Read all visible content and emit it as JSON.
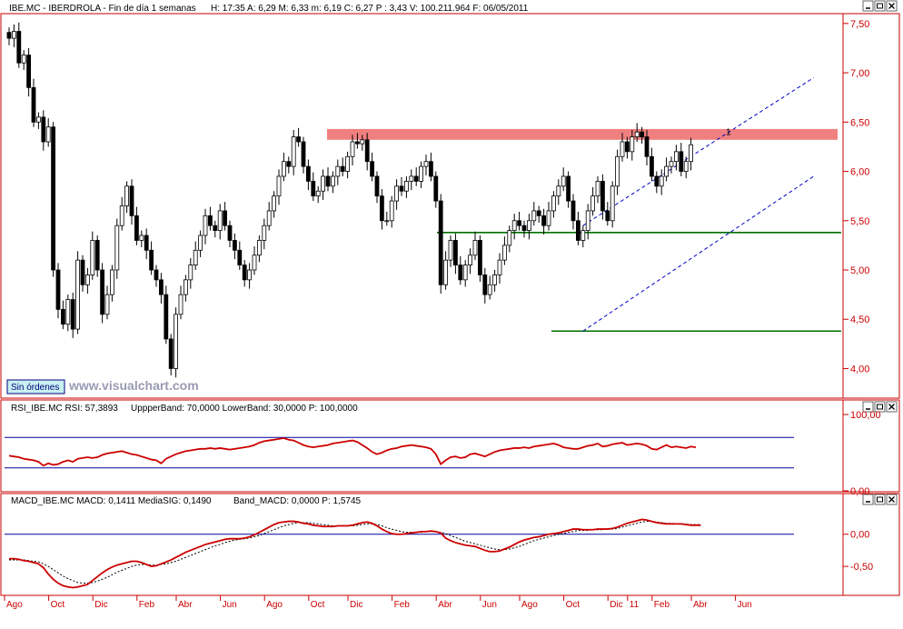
{
  "colors": {
    "frame": "#c80000",
    "candle_up": "#ffffff",
    "candle_down": "#000000",
    "resistance_band": "#f08080",
    "support": "#007000",
    "channel": "#0000c8",
    "rsi_line": "#cc0000",
    "rsi_band": "#0000a0",
    "macd_line": "#cc0000",
    "signal_line": "#000000",
    "axis_text": "#cc0000"
  },
  "header": {
    "price_title": "IBE.MC - IBERDROLA - Fin de día 1 semanas",
    "price_stats": "H: 17:35  A: 6,29  M: 6,33  m: 6,19  C: 6,27  P : 3,43  V: 100.211.964  F: 06/05/2011",
    "rsi_title": "RSI_IBE.MC  RSI: 57,3893",
    "rsi_stats": "UppperBand: 70,0000  LowerBand: 30,0000  P: 100,0000",
    "macd_title": "MACD_IBE.MC  MACD: 0,1411  MediaSIG: 0,1490",
    "macd_stats": "Band_MACD: 0,0000  P: 1,5745"
  },
  "button": {
    "label": "Sin órdenes"
  },
  "watermark": "www.visualchart.com",
  "window_controls": [
    "minimize-icon",
    "restore-icon",
    "close-icon"
  ],
  "annotation": "1",
  "chart_data": [
    {
      "type": "candlestick",
      "ylim": [
        3.7,
        7.6
      ],
      "yticks": [
        "7,50",
        "7,00",
        "6,50",
        "6,00",
        "5,50",
        "5,00",
        "4,50",
        "4,00"
      ],
      "ytick_values": [
        7.5,
        7.0,
        6.5,
        6.0,
        5.5,
        5.0,
        4.5,
        4.0
      ],
      "x_labels": [
        "Ago",
        "Oct",
        "Dic",
        "Feb",
        "Abr",
        "Jun",
        "Ago",
        "Oct",
        "Dic",
        "Feb",
        "Abr",
        "Jun",
        "Ago",
        "Oct",
        "Dic",
        "11",
        "Feb",
        "Abr",
        "Jun"
      ],
      "x_label_weeks": [
        0,
        9,
        18,
        27,
        35,
        44,
        53,
        62,
        70,
        79,
        88,
        97,
        105,
        114,
        123,
        127,
        132,
        140,
        149
      ],
      "closes": [
        7.35,
        7.42,
        7.1,
        7.18,
        6.85,
        6.5,
        6.55,
        6.3,
        6.45,
        5.0,
        4.6,
        4.45,
        4.7,
        4.4,
        5.1,
        4.85,
        4.95,
        5.3,
        5.0,
        4.55,
        4.75,
        5.0,
        5.45,
        5.65,
        5.85,
        5.55,
        5.3,
        5.35,
        5.2,
        5.0,
        4.9,
        4.75,
        4.3,
        4.0,
        4.55,
        4.75,
        4.9,
        5.05,
        5.2,
        5.35,
        5.55,
        5.45,
        5.4,
        5.6,
        5.45,
        5.3,
        5.2,
        5.05,
        4.9,
        5.0,
        5.15,
        5.3,
        5.45,
        5.6,
        5.75,
        5.95,
        6.1,
        6.05,
        6.35,
        6.3,
        6.05,
        5.9,
        5.75,
        5.8,
        5.95,
        5.85,
        5.95,
        6.05,
        6.0,
        6.15,
        6.3,
        6.28,
        6.32,
        6.1,
        5.95,
        5.75,
        5.5,
        5.5,
        5.7,
        5.85,
        5.8,
        5.9,
        5.95,
        5.9,
        6.05,
        6.1,
        5.95,
        5.7,
        4.85,
        5.1,
        5.3,
        5.05,
        4.9,
        5.05,
        5.15,
        5.3,
        4.95,
        4.75,
        4.85,
        4.95,
        5.1,
        5.25,
        5.4,
        5.5,
        5.45,
        5.4,
        5.5,
        5.6,
        5.55,
        5.45,
        5.6,
        5.75,
        5.85,
        5.95,
        5.7,
        5.5,
        5.3,
        5.4,
        5.6,
        5.75,
        5.9,
        5.6,
        5.5,
        5.85,
        6.15,
        6.3,
        6.2,
        6.35,
        6.4,
        6.35,
        6.15,
        5.95,
        5.85,
        5.95,
        6.05,
        6.1,
        6.2,
        6.0,
        6.1,
        6.27
      ],
      "resistance_band": [
        6.32,
        6.43
      ],
      "support_lines": [
        5.38,
        4.38
      ],
      "channel_upper": [
        [
          117,
          5.45
        ],
        [
          164,
          6.95
        ]
      ],
      "channel_lower": [
        [
          117,
          4.38
        ],
        [
          164,
          5.95
        ]
      ]
    },
    {
      "type": "line",
      "name": "RSI",
      "ylim": [
        0,
        100
      ],
      "yticks": [
        "100,00",
        "0,00"
      ],
      "ytick_values": [
        100,
        0
      ],
      "bands": [
        70,
        30
      ],
      "values": [
        46,
        45,
        44,
        42,
        41,
        40,
        38,
        33,
        36,
        34,
        35,
        38,
        40,
        38,
        42,
        43,
        44,
        43,
        44,
        47,
        49,
        50,
        51,
        52,
        50,
        48,
        47,
        45,
        43,
        41,
        40,
        36,
        42,
        45,
        48,
        50,
        52,
        53,
        54,
        55,
        55,
        56,
        55,
        56,
        55,
        54,
        55,
        56,
        57,
        58,
        60,
        63,
        65,
        66,
        67,
        68,
        69,
        67,
        66,
        63,
        60,
        58,
        57,
        58,
        59,
        60,
        62,
        63,
        64,
        65,
        66,
        64,
        60,
        56,
        51,
        48,
        50,
        53,
        55,
        56,
        58,
        59,
        60,
        59,
        58,
        57,
        55,
        48,
        35,
        40,
        44,
        45,
        43,
        44,
        48,
        49,
        47,
        45,
        48,
        51,
        53,
        54,
        55,
        56,
        56,
        57,
        56,
        58,
        59,
        60,
        61,
        62,
        60,
        57,
        56,
        55,
        55,
        57,
        59,
        60,
        62,
        58,
        59,
        61,
        62,
        63,
        60,
        61,
        62,
        61,
        59,
        55,
        54,
        57,
        60,
        57,
        58,
        57,
        56,
        58,
        57
      ]
    },
    {
      "type": "line",
      "name": "MACD",
      "ylim": [
        -0.95,
        0.42
      ],
      "yticks": [
        "0,00",
        "-0,50"
      ],
      "ytick_values": [
        0.0,
        -0.5
      ],
      "zero_line": 0,
      "macd": [
        -0.38,
        -0.38,
        -0.39,
        -0.41,
        -0.42,
        -0.44,
        -0.46,
        -0.52,
        -0.62,
        -0.7,
        -0.76,
        -0.8,
        -0.82,
        -0.83,
        -0.82,
        -0.8,
        -0.78,
        -0.72,
        -0.66,
        -0.6,
        -0.55,
        -0.51,
        -0.48,
        -0.46,
        -0.44,
        -0.42,
        -0.42,
        -0.44,
        -0.47,
        -0.5,
        -0.49,
        -0.46,
        -0.43,
        -0.4,
        -0.36,
        -0.32,
        -0.28,
        -0.25,
        -0.22,
        -0.19,
        -0.16,
        -0.14,
        -0.12,
        -0.1,
        -0.08,
        -0.07,
        -0.07,
        -0.07,
        -0.06,
        -0.04,
        -0.01,
        0.03,
        0.07,
        0.11,
        0.15,
        0.18,
        0.19,
        0.2,
        0.2,
        0.19,
        0.17,
        0.16,
        0.14,
        0.13,
        0.12,
        0.12,
        0.12,
        0.13,
        0.13,
        0.13,
        0.14,
        0.16,
        0.18,
        0.19,
        0.17,
        0.13,
        0.08,
        0.04,
        0.01,
        0.0,
        0.0,
        0.01,
        0.02,
        0.03,
        0.04,
        0.04,
        0.05,
        0.04,
        0.02,
        -0.06,
        -0.1,
        -0.13,
        -0.15,
        -0.17,
        -0.18,
        -0.19,
        -0.22,
        -0.25,
        -0.27,
        -0.27,
        -0.26,
        -0.23,
        -0.2,
        -0.16,
        -0.12,
        -0.09,
        -0.07,
        -0.05,
        -0.04,
        -0.02,
        0.0,
        0.01,
        0.02,
        0.04,
        0.06,
        0.08,
        0.08,
        0.07,
        0.07,
        0.07,
        0.08,
        0.08,
        0.08,
        0.09,
        0.11,
        0.14,
        0.17,
        0.19,
        0.21,
        0.23,
        0.22,
        0.2,
        0.18,
        0.17,
        0.16,
        0.16,
        0.16,
        0.16,
        0.15,
        0.14,
        0.14,
        0.14
      ],
      "signal": [
        -0.4,
        -0.4,
        -0.4,
        -0.4,
        -0.41,
        -0.42,
        -0.43,
        -0.46,
        -0.5,
        -0.55,
        -0.6,
        -0.65,
        -0.69,
        -0.72,
        -0.75,
        -0.76,
        -0.76,
        -0.75,
        -0.73,
        -0.7,
        -0.67,
        -0.63,
        -0.59,
        -0.56,
        -0.53,
        -0.5,
        -0.48,
        -0.47,
        -0.47,
        -0.48,
        -0.48,
        -0.47,
        -0.46,
        -0.44,
        -0.42,
        -0.39,
        -0.36,
        -0.33,
        -0.3,
        -0.27,
        -0.24,
        -0.21,
        -0.18,
        -0.16,
        -0.13,
        -0.11,
        -0.09,
        -0.08,
        -0.07,
        -0.06,
        -0.04,
        -0.02,
        0.01,
        0.04,
        0.07,
        0.1,
        0.13,
        0.15,
        0.17,
        0.18,
        0.18,
        0.18,
        0.17,
        0.16,
        0.15,
        0.14,
        0.13,
        0.13,
        0.13,
        0.13,
        0.13,
        0.14,
        0.15,
        0.16,
        0.16,
        0.15,
        0.13,
        0.1,
        0.08,
        0.06,
        0.04,
        0.03,
        0.03,
        0.03,
        0.03,
        0.04,
        0.04,
        0.04,
        0.03,
        0.01,
        -0.02,
        -0.05,
        -0.08,
        -0.11,
        -0.13,
        -0.15,
        -0.17,
        -0.19,
        -0.21,
        -0.23,
        -0.24,
        -0.24,
        -0.23,
        -0.21,
        -0.19,
        -0.16,
        -0.13,
        -0.1,
        -0.08,
        -0.06,
        -0.04,
        -0.02,
        0.0,
        0.01,
        0.03,
        0.04,
        0.06,
        0.06,
        0.06,
        0.07,
        0.07,
        0.07,
        0.08,
        0.08,
        0.09,
        0.11,
        0.13,
        0.15,
        0.17,
        0.19,
        0.2,
        0.2,
        0.19,
        0.18,
        0.17,
        0.17,
        0.16,
        0.16,
        0.16,
        0.15,
        0.15,
        0.15
      ]
    }
  ]
}
